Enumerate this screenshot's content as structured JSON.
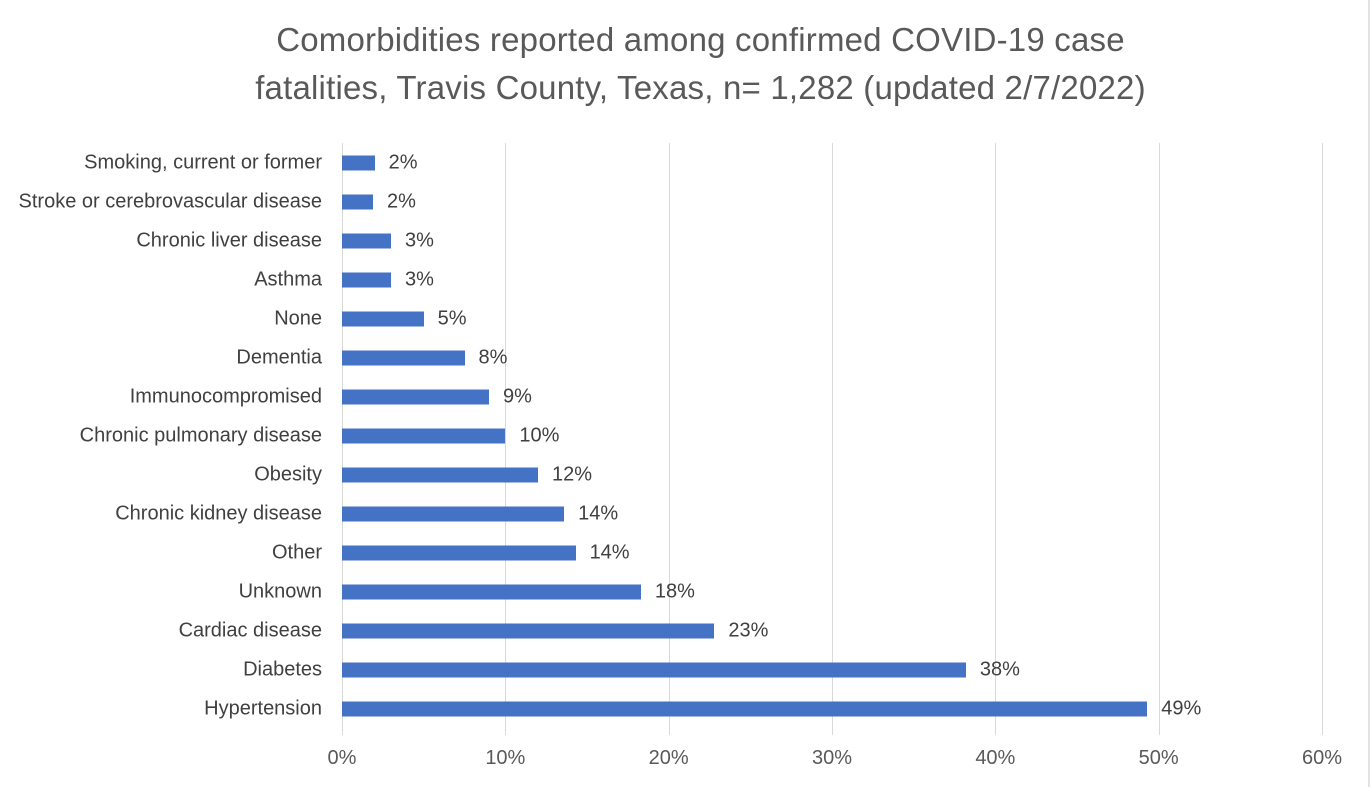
{
  "chart_data": {
    "type": "bar",
    "orientation": "horizontal",
    "title": "Comorbidities reported among confirmed COVID-19 case fatalities, Travis County, Texas, n= 1,282 (updated 2/7/2022)",
    "title_lines": [
      "Comorbidities reported among confirmed COVID-19 case",
      "fatalities, Travis County, Texas, n= 1,282 (updated 2/7/2022)"
    ],
    "categories": [
      "Smoking, current or former",
      "Stroke or cerebrovascular disease",
      "Chronic liver disease",
      "Asthma",
      "None",
      "Dementia",
      "Immunocompromised",
      "Chronic pulmonary disease",
      "Obesity",
      "Chronic kidney disease",
      "Other",
      "Unknown",
      "Cardiac disease",
      "Diabetes",
      "Hypertension"
    ],
    "values": [
      2,
      1.9,
      3,
      3,
      5,
      7.5,
      9,
      10,
      12,
      13.6,
      14.3,
      18.3,
      22.8,
      38.2,
      49.3
    ],
    "value_labels": [
      "2%",
      "2%",
      "3%",
      "3%",
      "5%",
      "8%",
      "9%",
      "10%",
      "12%",
      "14%",
      "14%",
      "18%",
      "23%",
      "38%",
      "49%"
    ],
    "xlabel": "",
    "ylabel": "",
    "xlim": [
      0,
      60
    ],
    "x_ticks": [
      0,
      10,
      20,
      30,
      40,
      50,
      60
    ],
    "x_tick_labels": [
      "0%",
      "10%",
      "20%",
      "30%",
      "40%",
      "50%",
      "60%"
    ],
    "grid": true,
    "legend": false,
    "colors": {
      "bar": "#4472c4",
      "gridline": "#d9d9d9",
      "title_text": "#595959",
      "label_text": "#404040",
      "axis_tick_text": "#595959"
    }
  }
}
